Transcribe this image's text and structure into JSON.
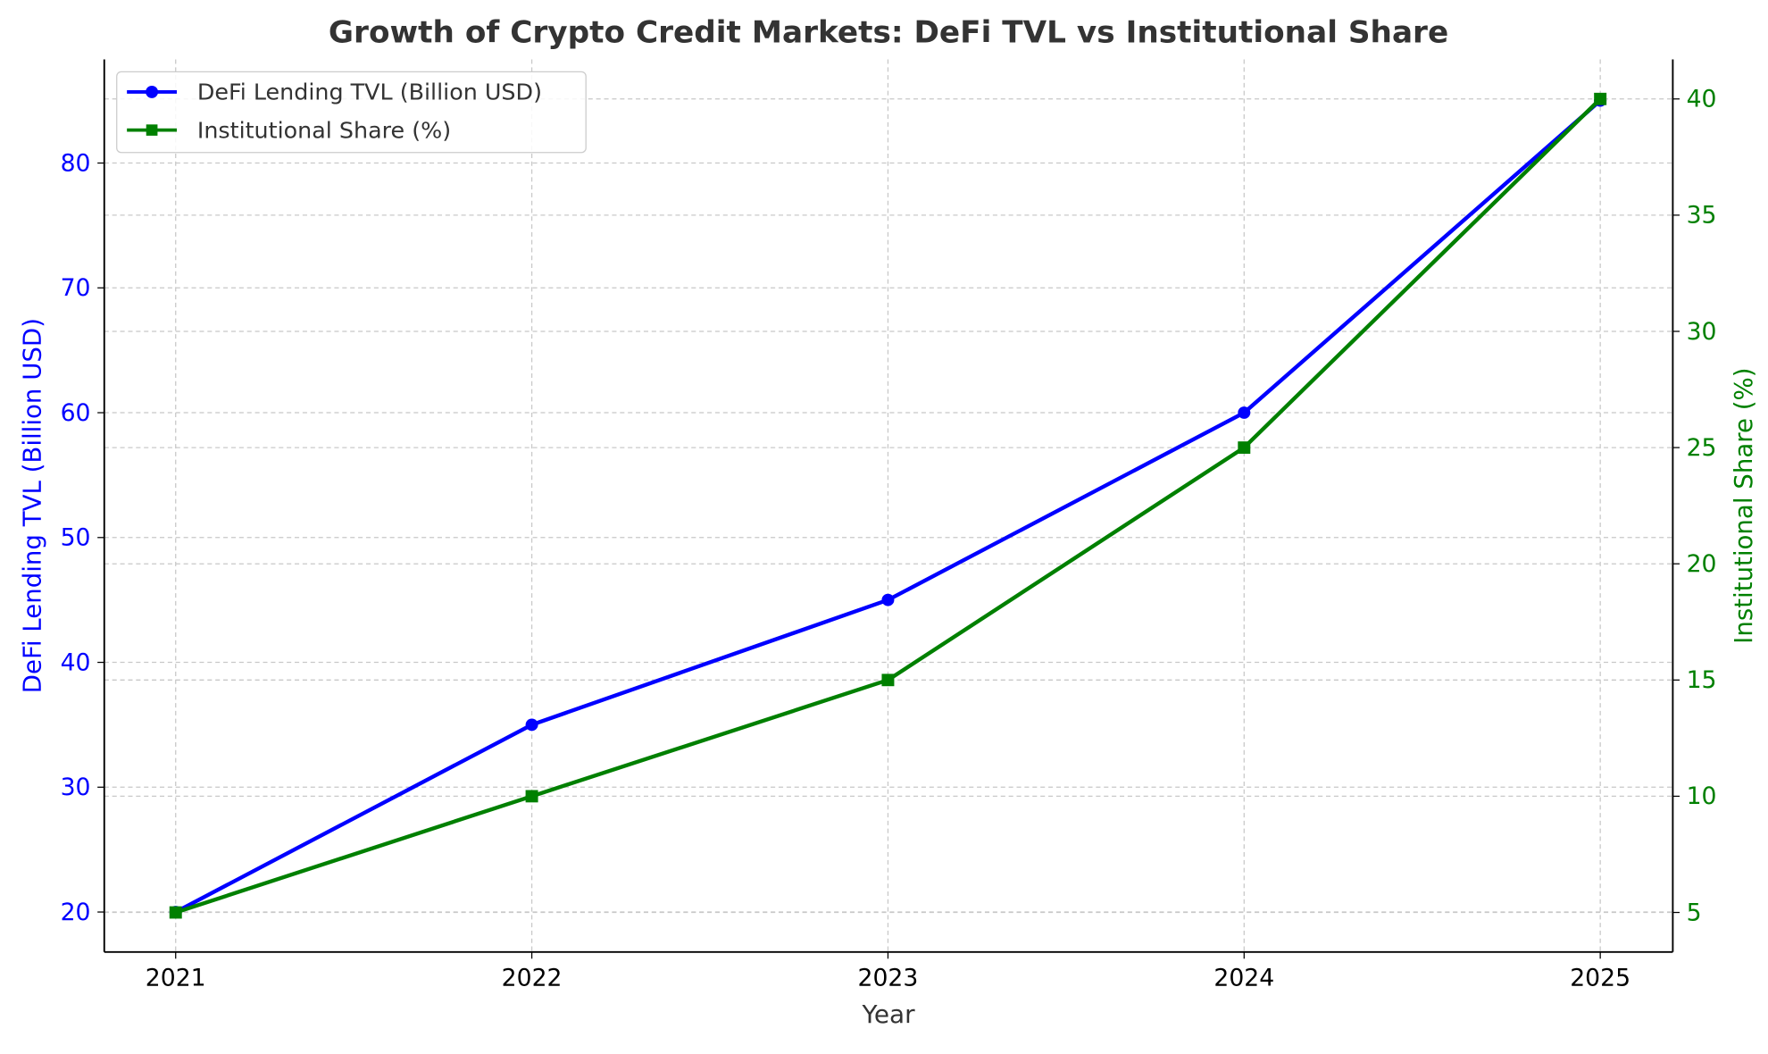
{
  "chart_data": {
    "type": "line",
    "title": "Growth of Crypto Credit Markets: DeFi TVL vs Institutional Share",
    "xlabel": "Year",
    "categories": [
      "2021",
      "2022",
      "2023",
      "2024",
      "2025"
    ],
    "series": [
      {
        "name": "DeFi Lending TVL (Billion USD)",
        "axis": "left",
        "values": [
          20,
          35,
          45,
          60,
          85
        ],
        "color": "#0000ff",
        "marker": "circle"
      },
      {
        "name": "Institutional Share (%)",
        "axis": "right",
        "values": [
          5,
          10,
          15,
          25,
          40
        ],
        "color": "#008000",
        "marker": "square"
      }
    ],
    "y_left": {
      "label": "DeFi Lending TVL (Billion USD)",
      "ticks": [
        20,
        30,
        40,
        50,
        60,
        70,
        80
      ],
      "ylim": [
        16.8,
        88.3
      ],
      "color": "#0000ff"
    },
    "y_right": {
      "label": "Institutional Share (%)",
      "ticks": [
        5,
        10,
        15,
        20,
        25,
        30,
        35,
        40
      ],
      "ylim": [
        3.3,
        41.7
      ],
      "color": "#008000"
    },
    "grid": true,
    "legend": "top-left"
  }
}
